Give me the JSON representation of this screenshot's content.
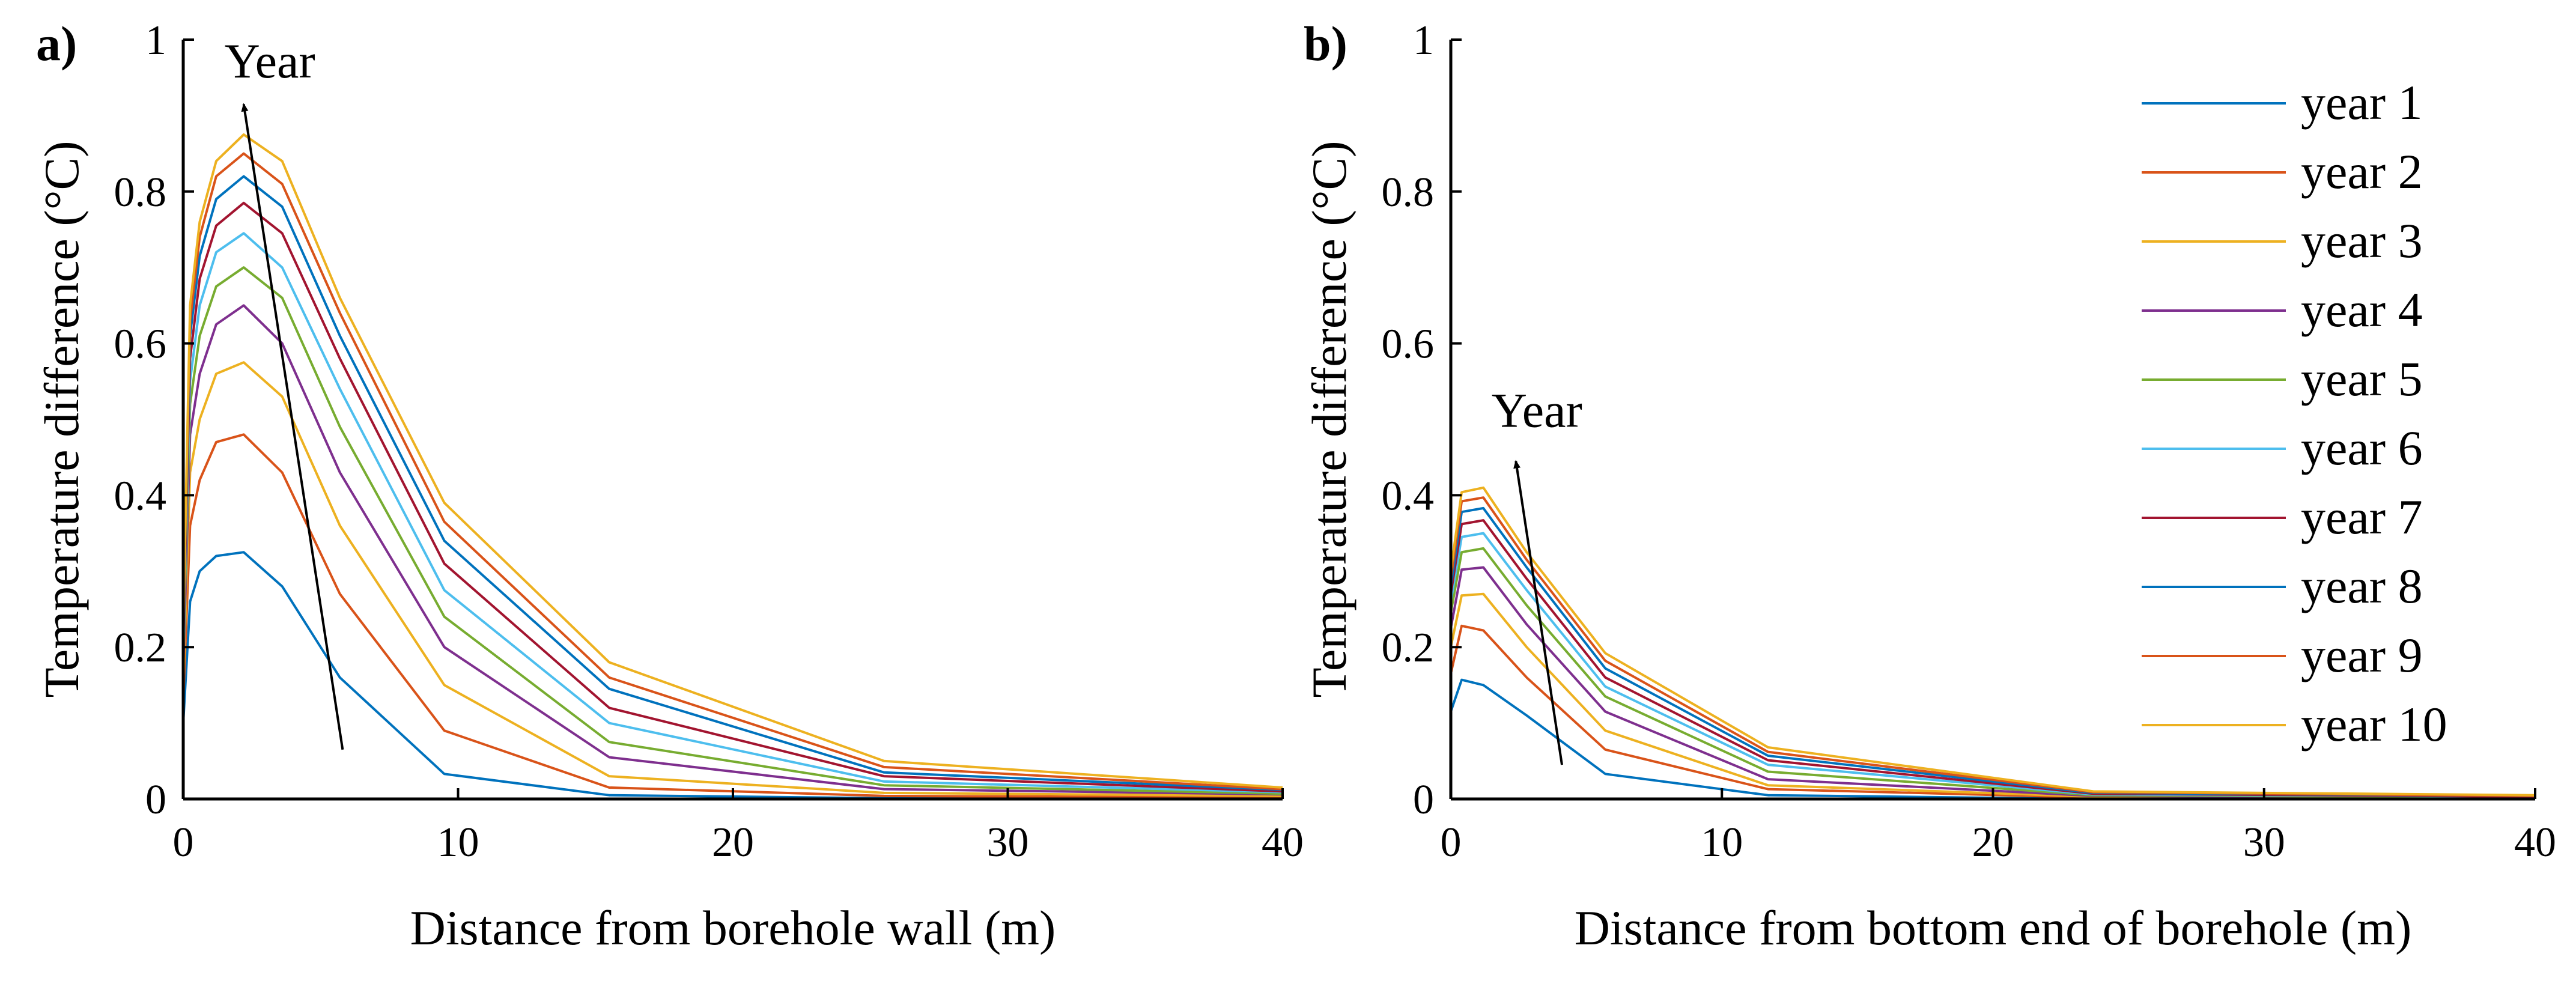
{
  "colors": [
    "#0072BD",
    "#D95319",
    "#EDB120",
    "#7E2F8E",
    "#77AC30",
    "#4DBEEE",
    "#A2142F",
    "#0072BD",
    "#D95319",
    "#EDB120"
  ],
  "legend": {
    "placement": "top-right",
    "entries": [
      "year 1",
      "year 2",
      "year 3",
      "year 4",
      "year 5",
      "year 6",
      "year 7",
      "year 8",
      "year 9",
      "year 10"
    ]
  },
  "chart_data": [
    {
      "type": "line",
      "panel_label": "a)",
      "xlabel": "Distance from borehole wall (m)",
      "ylabel": "Temperature difference (°C)",
      "xlim": [
        0,
        40
      ],
      "ylim": [
        0,
        1
      ],
      "xticks": [
        "0",
        "10",
        "20",
        "30",
        "40"
      ],
      "yticks": [
        "0",
        "0.2",
        "0.4",
        "0.6",
        "0.8",
        "1"
      ],
      "annotation": {
        "text": "Year",
        "arrow_from": [
          5.8,
          0.065
        ],
        "arrow_to": [
          2.2,
          0.915
        ],
        "text_at": [
          1.5,
          0.95
        ]
      },
      "x": [
        0,
        0.25,
        0.6,
        1.2,
        2.2,
        3.6,
        5.7,
        9.5,
        15.5,
        25.5,
        40
      ],
      "series": [
        {
          "name": "year 1",
          "values": [
            0.1,
            0.26,
            0.3,
            0.32,
            0.325,
            0.28,
            0.16,
            0.033,
            0.005,
            0.001,
            0.0
          ]
        },
        {
          "name": "year 2",
          "values": [
            0.13,
            0.36,
            0.42,
            0.47,
            0.48,
            0.43,
            0.27,
            0.09,
            0.015,
            0.004,
            0.002
          ]
        },
        {
          "name": "year 3",
          "values": [
            0.15,
            0.43,
            0.5,
            0.56,
            0.575,
            0.53,
            0.36,
            0.15,
            0.03,
            0.008,
            0.004
          ]
        },
        {
          "name": "year 4",
          "values": [
            0.17,
            0.48,
            0.56,
            0.625,
            0.65,
            0.6,
            0.43,
            0.2,
            0.055,
            0.013,
            0.006
          ]
        },
        {
          "name": "year 5",
          "values": [
            0.185,
            0.52,
            0.61,
            0.675,
            0.7,
            0.66,
            0.49,
            0.24,
            0.075,
            0.018,
            0.007
          ]
        },
        {
          "name": "year 6",
          "values": [
            0.195,
            0.55,
            0.65,
            0.72,
            0.745,
            0.7,
            0.54,
            0.275,
            0.1,
            0.023,
            0.009
          ]
        },
        {
          "name": "year 7",
          "values": [
            0.205,
            0.58,
            0.685,
            0.755,
            0.785,
            0.745,
            0.58,
            0.31,
            0.12,
            0.03,
            0.01
          ]
        },
        {
          "name": "year 8",
          "values": [
            0.215,
            0.61,
            0.715,
            0.79,
            0.82,
            0.78,
            0.61,
            0.34,
            0.145,
            0.035,
            0.012
          ]
        },
        {
          "name": "year 9",
          "values": [
            0.22,
            0.63,
            0.74,
            0.82,
            0.85,
            0.81,
            0.64,
            0.365,
            0.16,
            0.042,
            0.013
          ]
        },
        {
          "name": "year 10",
          "values": [
            0.23,
            0.65,
            0.76,
            0.84,
            0.875,
            0.84,
            0.66,
            0.39,
            0.18,
            0.05,
            0.015
          ]
        }
      ]
    },
    {
      "type": "line",
      "panel_label": "b)",
      "xlabel": "Distance from bottom end of borehole (m)",
      "ylabel": "Temperature difference (°C)",
      "xlim": [
        0,
        40
      ],
      "ylim": [
        0,
        1
      ],
      "xticks": [
        "0",
        "10",
        "20",
        "30",
        "40"
      ],
      "yticks": [
        "0",
        "0.2",
        "0.4",
        "0.6",
        "0.8",
        "1"
      ],
      "annotation": {
        "text": "Year",
        "arrow_from": [
          4.1,
          0.045
        ],
        "arrow_to": [
          2.4,
          0.445
        ],
        "text_at": [
          1.5,
          0.49
        ]
      },
      "x": [
        0,
        0.4,
        1.2,
        2.8,
        5.7,
        11.7,
        23.7,
        40
      ],
      "series": [
        {
          "name": "year 1",
          "values": [
            0.115,
            0.157,
            0.15,
            0.11,
            0.033,
            0.005,
            0.0,
            0.0
          ]
        },
        {
          "name": "year 2",
          "values": [
            0.165,
            0.228,
            0.222,
            0.16,
            0.065,
            0.013,
            0.002,
            0.001
          ]
        },
        {
          "name": "year 3",
          "values": [
            0.2,
            0.268,
            0.27,
            0.2,
            0.09,
            0.018,
            0.003,
            0.001
          ]
        },
        {
          "name": "year 4",
          "values": [
            0.225,
            0.302,
            0.305,
            0.23,
            0.115,
            0.026,
            0.004,
            0.002
          ]
        },
        {
          "name": "year 5",
          "values": [
            0.245,
            0.325,
            0.33,
            0.255,
            0.135,
            0.036,
            0.005,
            0.002
          ]
        },
        {
          "name": "year 6",
          "values": [
            0.26,
            0.345,
            0.35,
            0.275,
            0.148,
            0.045,
            0.006,
            0.003
          ]
        },
        {
          "name": "year 7",
          "values": [
            0.27,
            0.362,
            0.367,
            0.29,
            0.16,
            0.051,
            0.007,
            0.003
          ]
        },
        {
          "name": "year 8",
          "values": [
            0.28,
            0.378,
            0.383,
            0.305,
            0.172,
            0.057,
            0.008,
            0.004
          ]
        },
        {
          "name": "year 9",
          "values": [
            0.29,
            0.392,
            0.397,
            0.315,
            0.182,
            0.062,
            0.009,
            0.004
          ]
        },
        {
          "name": "year 10",
          "values": [
            0.3,
            0.404,
            0.41,
            0.325,
            0.192,
            0.068,
            0.01,
            0.005
          ]
        }
      ]
    }
  ]
}
